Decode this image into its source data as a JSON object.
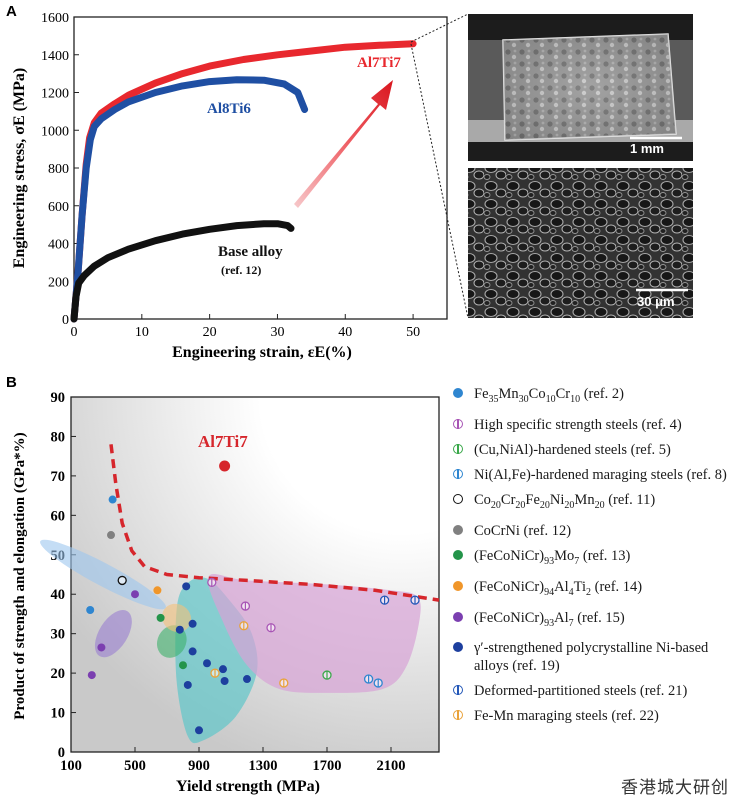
{
  "panels": {
    "a_label": "A",
    "b_label": "B"
  },
  "chart_data": [
    {
      "type": "line",
      "id": "A",
      "xlabel": "Engineering strain, εE(%)",
      "ylabel": "Engineering stress, σE (MPa)",
      "xlim": [
        0,
        55
      ],
      "ylim": [
        0,
        1600
      ],
      "xticks": [
        0,
        10,
        20,
        30,
        40,
        50
      ],
      "yticks": [
        0,
        200,
        400,
        600,
        800,
        1000,
        1200,
        1400,
        1600
      ],
      "series": [
        {
          "name": "Al7Ti7",
          "color": "#e8282e",
          "points": [
            [
              0,
              0
            ],
            [
              0.6,
              250
            ],
            [
              1.2,
              550
            ],
            [
              1.8,
              820
            ],
            [
              2.3,
              960
            ],
            [
              3,
              1040
            ],
            [
              4,
              1090
            ],
            [
              6,
              1140
            ],
            [
              8,
              1185
            ],
            [
              12,
              1250
            ],
            [
              16,
              1300
            ],
            [
              20,
              1340
            ],
            [
              25,
              1375
            ],
            [
              30,
              1400
            ],
            [
              35,
              1420
            ],
            [
              40,
              1440
            ],
            [
              45,
              1450
            ],
            [
              50,
              1458
            ]
          ]
        },
        {
          "name": "Al8Ti6",
          "color": "#1f4fa3",
          "points": [
            [
              0,
              0
            ],
            [
              0.6,
              250
            ],
            [
              1.2,
              550
            ],
            [
              1.8,
              800
            ],
            [
              2.4,
              950
            ],
            [
              3,
              1020
            ],
            [
              4,
              1060
            ],
            [
              6,
              1110
            ],
            [
              8,
              1150
            ],
            [
              12,
              1200
            ],
            [
              16,
              1235
            ],
            [
              20,
              1258
            ],
            [
              24,
              1268
            ],
            [
              28,
              1265
            ],
            [
              31,
              1245
            ],
            [
              33,
              1200
            ],
            [
              34,
              1110
            ]
          ]
        },
        {
          "name": "Base alloy",
          "color": "#111111",
          "points": [
            [
              0,
              0
            ],
            [
              0.3,
              120
            ],
            [
              0.7,
              190
            ],
            [
              1.5,
              230
            ],
            [
              3,
              280
            ],
            [
              5,
              325
            ],
            [
              8,
              370
            ],
            [
              12,
              415
            ],
            [
              16,
              450
            ],
            [
              20,
              475
            ],
            [
              24,
              495
            ],
            [
              28,
              505
            ],
            [
              30,
              505
            ],
            [
              31.5,
              495
            ],
            [
              32,
              480
            ]
          ]
        }
      ],
      "annotations": {
        "red_label": "Al7Ti7",
        "blue_label": "Al8Ti6",
        "black_label": "Base alloy",
        "black_sub": "(ref. 12)"
      }
    },
    {
      "type": "scatter",
      "id": "B",
      "xlabel": "Yield strength (MPa)",
      "ylabel": "Product of strength and elongation (GPa*%)",
      "xlim": [
        100,
        2400
      ],
      "ylim": [
        0,
        90
      ],
      "xticks": [
        100,
        500,
        900,
        1300,
        1700,
        2100
      ],
      "yticks": [
        0,
        10,
        20,
        30,
        40,
        50,
        60,
        70,
        80,
        90
      ],
      "highlight": {
        "label": "Al7Ti7",
        "x": 1060,
        "y": 72.5,
        "color": "#d6262c"
      },
      "series": [
        {
          "key": "femn",
          "color": "#2f86d0",
          "style": "filled",
          "points": [
            [
              220,
              36
            ],
            [
              360,
              64
            ]
          ]
        },
        {
          "key": "hss",
          "color": "#a855b5",
          "style": "hollow",
          "points": [
            [
              980,
              43
            ],
            [
              1190,
              37
            ],
            [
              1350,
              31.5
            ]
          ]
        },
        {
          "key": "cunial",
          "color": "#3aa84a",
          "style": "hollow",
          "points": [
            [
              1700,
              19.5
            ]
          ]
        },
        {
          "key": "nialfe",
          "color": "#2f86d0",
          "style": "hollow",
          "points": [
            [
              1960,
              18.5
            ],
            [
              2020,
              17.5
            ]
          ]
        },
        {
          "key": "cocrfe",
          "color": "#111111",
          "style": "hollow",
          "points": [
            [
              420,
              43.5
            ]
          ]
        },
        {
          "key": "cocrni",
          "color": "#808080",
          "style": "filled",
          "points": [
            [
              350,
              55
            ]
          ]
        },
        {
          "key": "mo",
          "color": "#24944a",
          "style": "filled",
          "points": [
            [
              660,
              34
            ],
            [
              800,
              22
            ]
          ]
        },
        {
          "key": "al4ti2",
          "color": "#f0962a",
          "style": "filled",
          "points": [
            [
              640,
              41
            ]
          ]
        },
        {
          "key": "al7",
          "color": "#7b3fb0",
          "style": "filled",
          "points": [
            [
              230,
              19.5
            ],
            [
              290,
              26.5
            ],
            [
              500,
              40
            ]
          ]
        },
        {
          "key": "ni",
          "color": "#1d3f9e",
          "style": "filled",
          "points": [
            [
              820,
              42
            ],
            [
              780,
              31
            ],
            [
              830,
              17
            ],
            [
              860,
              32.5
            ],
            [
              860,
              25.5
            ],
            [
              900,
              5.5
            ],
            [
              950,
              22.5
            ],
            [
              1050,
              21
            ],
            [
              1060,
              18
            ],
            [
              1200,
              18.5
            ]
          ]
        },
        {
          "key": "dps",
          "color": "#2458b8",
          "style": "hollow",
          "points": [
            [
              2060,
              38.5
            ],
            [
              2250,
              38.5
            ]
          ]
        },
        {
          "key": "femnmar",
          "color": "#e9a23a",
          "style": "hollow",
          "points": [
            [
              1180,
              32
            ],
            [
              1430,
              17.5
            ],
            [
              1000,
              20
            ]
          ]
        }
      ],
      "boundary": [
        [
          350,
          78
        ],
        [
          380,
          68
        ],
        [
          420,
          58
        ],
        [
          480,
          51
        ],
        [
          560,
          47
        ],
        [
          700,
          45
        ],
        [
          900,
          44.2
        ],
        [
          1200,
          43.5
        ],
        [
          1600,
          42.5
        ],
        [
          2000,
          41
        ],
        [
          2400,
          38.5
        ]
      ],
      "regions": [
        {
          "key": "r-femn",
          "color": "#9cc7ee",
          "cx": 300,
          "cy": 45,
          "rx": 70,
          "ry": 18,
          "rot": -62
        },
        {
          "key": "r-al7",
          "color": "#9a7fd0",
          "cx": 365,
          "cy": 30,
          "rx": 165,
          "ry": 3.6,
          "rot": -58
        },
        {
          "key": "r-mo",
          "color": "#3eb06a",
          "cx": 730,
          "cy": 28,
          "rx": 105,
          "ry": 3.6,
          "rot": -62
        },
        {
          "key": "r-orange",
          "color": "#f3c27a",
          "cx": 760,
          "cy": 34,
          "rx": 85,
          "ry": 3.8,
          "rot": -55
        }
      ],
      "blobs": [
        {
          "key": "b-ni",
          "color": "#5fc6c9",
          "pts": [
            [
              820,
              42.5
            ],
            [
              760,
              36
            ],
            [
              760,
              18
            ],
            [
              830,
              4
            ],
            [
              930,
              3
            ],
            [
              1130,
              9
            ],
            [
              1260,
              20
            ],
            [
              1230,
              30
            ],
            [
              1100,
              38
            ],
            [
              950,
              44
            ]
          ]
        },
        {
          "key": "b-hss",
          "color": "#d7a3d6",
          "pts": [
            [
              960,
              44.5
            ],
            [
              1200,
              43.5
            ],
            [
              1700,
              42.5
            ],
            [
              2100,
              41
            ],
            [
              2260,
              39.5
            ],
            [
              2280,
              34
            ],
            [
              2200,
              22
            ],
            [
              2050,
              16
            ],
            [
              1700,
              15
            ],
            [
              1400,
              16
            ],
            [
              1200,
              22
            ],
            [
              1050,
              33
            ]
          ]
        }
      ]
    }
  ],
  "legend": [
    {
      "key": "femn",
      "label": "Fe35Mn30Co10Cr10 (ref. 2)",
      "parts": [
        [
          "Fe",
          ""
        ],
        [
          "35",
          "sub"
        ],
        [
          "Mn",
          ""
        ],
        [
          "30",
          "sub"
        ],
        [
          "Co",
          ""
        ],
        [
          "10",
          "sub"
        ],
        [
          "Cr",
          ""
        ],
        [
          "10",
          "sub"
        ],
        [
          " (ref. 2)",
          ""
        ]
      ]
    },
    {
      "key": "hss",
      "label": "High specific strength steels (ref. 4)"
    },
    {
      "key": "cunial",
      "label": "(Cu,NiAl)-hardened steels (ref. 5)"
    },
    {
      "key": "nialfe",
      "label": "Ni(Al,Fe)-hardened maraging steels (ref. 8)"
    },
    {
      "key": "cocrfe",
      "label": "Co20Cr20Fe20Ni20Mn20 (ref. 11)",
      "parts": [
        [
          "Co",
          ""
        ],
        [
          "20",
          "sub"
        ],
        [
          "Cr",
          ""
        ],
        [
          "20",
          "sub"
        ],
        [
          "Fe",
          ""
        ],
        [
          "20",
          "sub"
        ],
        [
          "Ni",
          ""
        ],
        [
          "20",
          "sub"
        ],
        [
          "Mn",
          ""
        ],
        [
          "20",
          "sub"
        ],
        [
          " (ref. 11)",
          ""
        ]
      ]
    },
    {
      "key": "cocrni",
      "label": "CoCrNi (ref. 12)"
    },
    {
      "key": "mo",
      "label": "(FeCoNiCr)93Mo7 (ref. 13)",
      "parts": [
        [
          "(FeCoNiCr)",
          ""
        ],
        [
          "93",
          "sub"
        ],
        [
          "Mo",
          ""
        ],
        [
          "7",
          "sub"
        ],
        [
          " (ref. 13)",
          ""
        ]
      ]
    },
    {
      "key": "al4ti2",
      "label": "(FeCoNiCr)94Al4Ti2 (ref. 14)",
      "parts": [
        [
          "(FeCoNiCr)",
          ""
        ],
        [
          "94",
          "sub"
        ],
        [
          "Al",
          ""
        ],
        [
          "4",
          "sub"
        ],
        [
          "Ti",
          ""
        ],
        [
          "2",
          "sub"
        ],
        [
          " (ref. 14)",
          ""
        ]
      ]
    },
    {
      "key": "al7",
      "label": "(FeCoNiCr)93Al7 (ref. 15)",
      "parts": [
        [
          "(FeCoNiCr)",
          ""
        ],
        [
          "93",
          "sub"
        ],
        [
          "Al",
          ""
        ],
        [
          "7",
          "sub"
        ],
        [
          " (ref. 15)",
          ""
        ]
      ]
    },
    {
      "key": "ni",
      "label": "γ′-strengthened polycrystalline Ni-based alloys (ref. 19)"
    },
    {
      "key": "dps",
      "label": "Deformed-partitioned steels (ref. 21)"
    },
    {
      "key": "femnmar",
      "label": "Fe-Mn maraging steels (ref. 22)"
    }
  ],
  "micrographs": {
    "top_scale": "1 mm",
    "bottom_scale": "30 μm"
  },
  "watermark": "香港城大研创"
}
